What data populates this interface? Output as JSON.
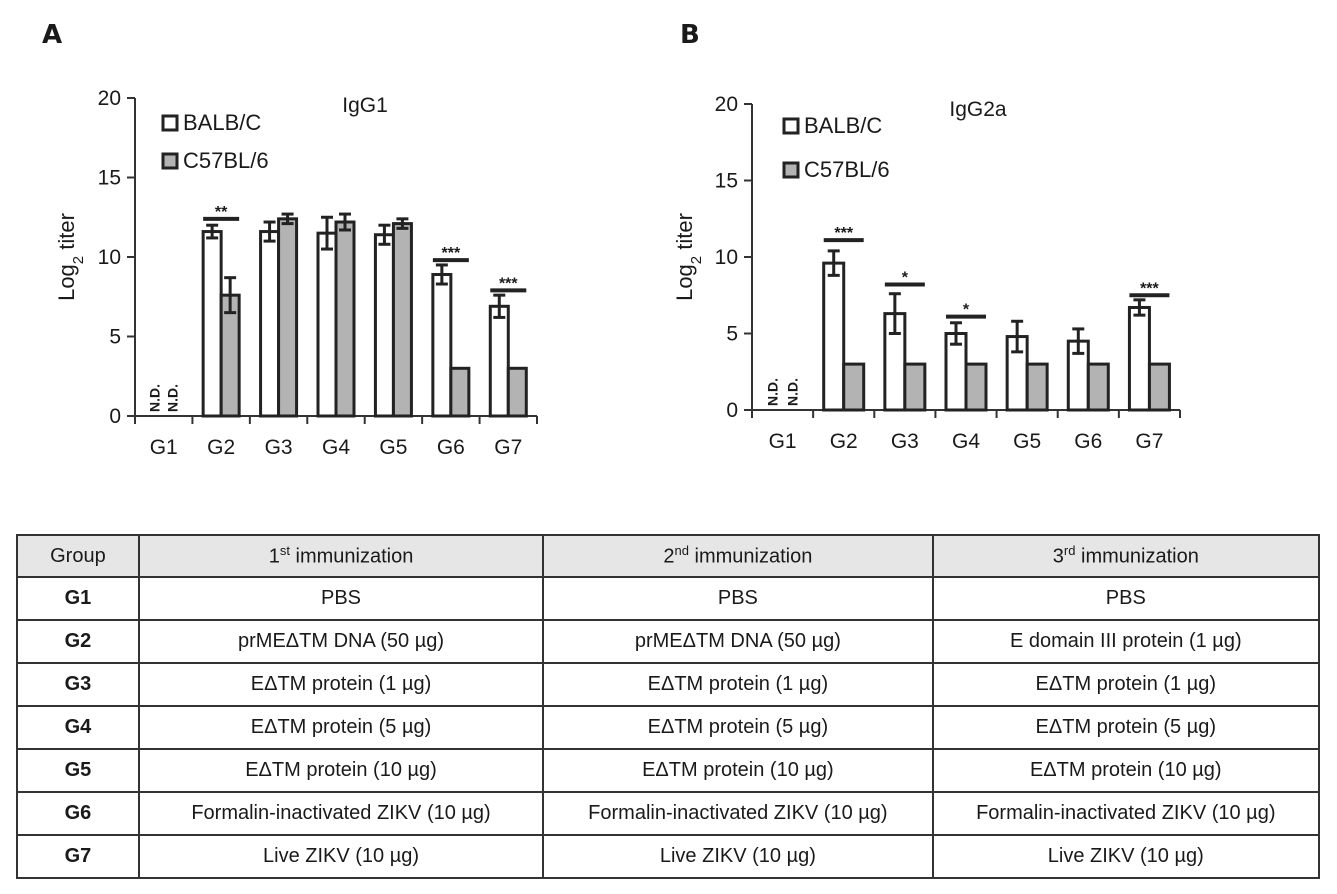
{
  "panels": {
    "a": "A",
    "b": "B"
  },
  "chart_data": [
    {
      "type": "bar",
      "panel": "A",
      "title": "IgG1",
      "ylabel": "Log2 titer",
      "ylim": [
        0,
        20
      ],
      "yticks": [
        0,
        5,
        10,
        15,
        20
      ],
      "categories": [
        "G1",
        "G2",
        "G3",
        "G4",
        "G5",
        "G6",
        "G7"
      ],
      "series": [
        {
          "name": "BALB/C",
          "color": "#ffffff",
          "values": [
            0,
            11.6,
            11.6,
            11.5,
            11.4,
            8.9,
            6.9
          ],
          "errors": [
            0,
            0.4,
            0.6,
            1.0,
            0.6,
            0.6,
            0.7
          ]
        },
        {
          "name": "C57BL/6",
          "color": "#b3b3b3",
          "values": [
            0,
            7.6,
            12.4,
            12.2,
            12.1,
            3.0,
            3.0
          ],
          "errors": [
            0,
            1.1,
            0.3,
            0.5,
            0.3,
            0,
            0
          ]
        }
      ],
      "nd_labels": [
        "N.D.",
        "N.D."
      ],
      "significance": [
        {
          "group": "G2",
          "label": "**",
          "y": 12.4
        },
        {
          "group": "G6",
          "label": "***",
          "y": 9.8
        },
        {
          "group": "G7",
          "label": "***",
          "y": 7.9
        }
      ]
    },
    {
      "type": "bar",
      "panel": "B",
      "title": "IgG2a",
      "ylabel": "Log2 titer",
      "ylim": [
        0,
        20
      ],
      "yticks": [
        0,
        5,
        10,
        15,
        20
      ],
      "categories": [
        "G1",
        "G2",
        "G3",
        "G4",
        "G5",
        "G6",
        "G7"
      ],
      "series": [
        {
          "name": "BALB/C",
          "color": "#ffffff",
          "values": [
            0,
            9.6,
            6.3,
            5.0,
            4.8,
            4.5,
            6.7
          ],
          "errors": [
            0,
            0.8,
            1.3,
            0.7,
            1.0,
            0.8,
            0.5
          ]
        },
        {
          "name": "C57BL/6",
          "color": "#b3b3b3",
          "values": [
            0,
            3.0,
            3.0,
            3.0,
            3.0,
            3.0,
            3.0
          ],
          "errors": [
            0,
            0,
            0,
            0,
            0,
            0,
            0
          ]
        }
      ],
      "nd_labels": [
        "N.D.",
        "N.D."
      ],
      "significance": [
        {
          "group": "G2",
          "label": "***",
          "y": 11.1
        },
        {
          "group": "G3",
          "label": "*",
          "y": 8.2
        },
        {
          "group": "G4",
          "label": "*",
          "y": 6.1
        },
        {
          "group": "G7",
          "label": "***",
          "y": 7.5
        }
      ]
    }
  ],
  "table": {
    "headers": [
      {
        "main": "Group",
        "sup": "",
        "rest": ""
      },
      {
        "main": "1",
        "sup": "st",
        "rest": " immunization"
      },
      {
        "main": "2",
        "sup": "nd",
        "rest": " immunization"
      },
      {
        "main": "3",
        "sup": "rd",
        "rest": " immunization"
      }
    ],
    "rows": [
      [
        "G1",
        "PBS",
        "PBS",
        "PBS"
      ],
      [
        "G2",
        "prMEΔTM DNA (50 µg)",
        "prMEΔTM DNA (50 µg)",
        "E domain III protein  (1 µg)"
      ],
      [
        "G3",
        "EΔTM protein (1 µg)",
        "EΔTM protein (1 µg)",
        "EΔTM protein (1 µg)"
      ],
      [
        "G4",
        "EΔTM protein (5 µg)",
        "EΔTM protein (5 µg)",
        "EΔTM protein (5 µg)"
      ],
      [
        "G5",
        "EΔTM protein (10 µg)",
        "EΔTM protein (10 µg)",
        "EΔTM protein (10 µg)"
      ],
      [
        "G6",
        "Formalin-inactivated ZIKV (10 µg)",
        "Formalin-inactivated ZIKV (10 µg)",
        "Formalin-inactivated ZIKV (10 µg)"
      ],
      [
        "G7",
        "Live ZIKV (10 µg)",
        "Live ZIKV (10 µg)",
        "Live ZIKV (10 µg)"
      ]
    ]
  }
}
